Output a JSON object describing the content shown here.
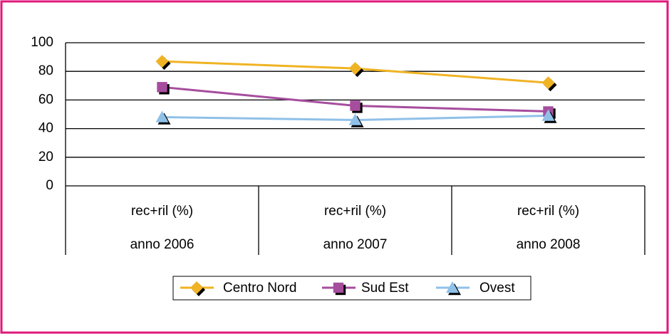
{
  "chart_data": {
    "type": "line",
    "categories": [
      [
        "rec+ril (%)",
        "anno 2006"
      ],
      [
        "rec+ril (%)",
        "anno 2007"
      ],
      [
        "rec+ril (%)",
        "anno 2008"
      ]
    ],
    "series": [
      {
        "name": "Centro Nord",
        "color": "#f0b323",
        "marker": "diamond",
        "values": [
          87,
          82,
          72
        ]
      },
      {
        "name": "Sud Est",
        "color": "#a64d9e",
        "marker": "square",
        "values": [
          69,
          56,
          52
        ]
      },
      {
        "name": "Ovest",
        "color": "#8fc0e8",
        "marker": "triangle",
        "values": [
          48,
          46,
          49
        ]
      }
    ],
    "ylim": [
      0,
      100
    ],
    "yticks": [
      0,
      20,
      40,
      60,
      80,
      100
    ],
    "grid": true,
    "legend": "bottom"
  }
}
